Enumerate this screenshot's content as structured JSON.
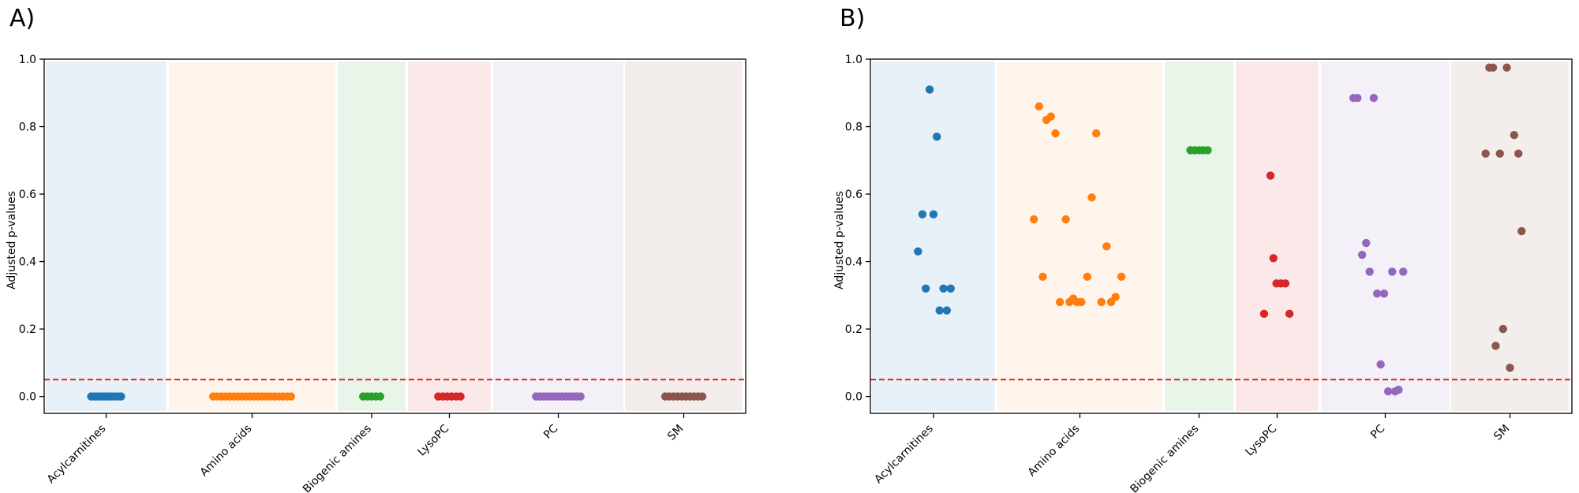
{
  "chart_data": [
    {
      "type": "scatter",
      "panel_label": "A)",
      "ylabel": "Adjusted p-values",
      "xlabel": "",
      "ylim": [
        -0.05,
        1.0
      ],
      "yticks": [
        "0.0",
        "0.2",
        "0.4",
        "0.6",
        "0.8",
        "1.0"
      ],
      "threshold": 0.05,
      "categories": [
        "Acylcarnitines",
        "Amino acids",
        "Biogenic amines",
        "LysoPC",
        "PC",
        "SM"
      ],
      "series": [
        {
          "name": "Acylcarnitines",
          "color": "#1f77b4",
          "bg": "#e8f0f8",
          "points": [
            [
              -0.275,
              0
            ],
            [
              -0.214,
              0
            ],
            [
              -0.153,
              0
            ],
            [
              -0.092,
              0
            ],
            [
              -0.031,
              0
            ],
            [
              0.031,
              0
            ],
            [
              0.092,
              0
            ],
            [
              0.153,
              0
            ],
            [
              0.214,
              0
            ],
            [
              0.275,
              0
            ]
          ]
        },
        {
          "name": "Amino acids",
          "color": "#ff7f0e",
          "bg": "#fff5ec",
          "points": [
            [
              -0.52,
              0
            ],
            [
              -0.465,
              0
            ],
            [
              -0.41,
              0
            ],
            [
              -0.355,
              0
            ],
            [
              -0.3,
              0
            ],
            [
              -0.245,
              0
            ],
            [
              -0.19,
              0
            ],
            [
              -0.135,
              0
            ],
            [
              -0.08,
              0
            ],
            [
              -0.025,
              0
            ],
            [
              0.025,
              0
            ],
            [
              0.08,
              0
            ],
            [
              0.135,
              0
            ],
            [
              0.19,
              0
            ],
            [
              0.245,
              0
            ],
            [
              0.3,
              0
            ],
            [
              0.355,
              0
            ],
            [
              0.41,
              0
            ],
            [
              0.465,
              0
            ],
            [
              0.52,
              0
            ]
          ]
        },
        {
          "name": "Biogenic amines",
          "color": "#2ca02c",
          "bg": "#eaf5ea",
          "points": [
            [
              -0.28,
              0
            ],
            [
              -0.14,
              0
            ],
            [
              0,
              0
            ],
            [
              0.14,
              0
            ],
            [
              0.28,
              0
            ]
          ]
        },
        {
          "name": "LysoPC",
          "color": "#d62728",
          "bg": "#fbe9e9",
          "points": [
            [
              -0.3,
              0
            ],
            [
              -0.18,
              0
            ],
            [
              -0.06,
              0
            ],
            [
              0.06,
              0
            ],
            [
              0.18,
              0
            ],
            [
              0.3,
              0
            ]
          ]
        },
        {
          "name": "PC",
          "color": "#9467bd",
          "bg": "#f4f0f8",
          "points": [
            [
              -0.38,
              0
            ],
            [
              -0.317,
              0
            ],
            [
              -0.253,
              0
            ],
            [
              -0.19,
              0
            ],
            [
              -0.127,
              0
            ],
            [
              -0.063,
              0
            ],
            [
              0,
              0
            ],
            [
              0.063,
              0
            ],
            [
              0.127,
              0
            ],
            [
              0.19,
              0
            ],
            [
              0.253,
              0
            ],
            [
              0.317,
              0
            ],
            [
              0.38,
              0
            ]
          ]
        },
        {
          "name": "SM",
          "color": "#8c564b",
          "bg": "#f3eeec",
          "points": [
            [
              -0.35,
              0
            ],
            [
              -0.272,
              0
            ],
            [
              -0.194,
              0
            ],
            [
              -0.117,
              0
            ],
            [
              -0.039,
              0
            ],
            [
              0.039,
              0
            ],
            [
              0.117,
              0
            ],
            [
              0.194,
              0
            ],
            [
              0.272,
              0
            ],
            [
              0.35,
              0
            ]
          ]
        }
      ]
    },
    {
      "type": "scatter",
      "panel_label": "B)",
      "ylabel": "Adjusted p-values",
      "xlabel": "",
      "ylim": [
        -0.05,
        1.0
      ],
      "yticks": [
        "0.0",
        "0.2",
        "0.4",
        "0.6",
        "0.8",
        "1.0"
      ],
      "threshold": 0.05,
      "categories": [
        "Acylcarnitines",
        "Amino acids",
        "Biogenic amines",
        "LysoPC",
        "PC",
        "SM"
      ],
      "series": [
        {
          "name": "Acylcarnitines",
          "color": "#1f77b4",
          "bg": "#e8f0f8",
          "points": [
            [
              -0.28,
              0.43
            ],
            [
              -0.2,
              0.54
            ],
            [
              -0.14,
              0.32
            ],
            [
              -0.07,
              0.91
            ],
            [
              0,
              0.54
            ],
            [
              0.06,
              0.77
            ],
            [
              0.11,
              0.255
            ],
            [
              0.18,
              0.32
            ],
            [
              0.24,
              0.255
            ],
            [
              0.31,
              0.32
            ]
          ]
        },
        {
          "name": "Amino acids",
          "color": "#ff7f0e",
          "bg": "#fff5ec",
          "points": [
            [
              -0.62,
              0.525
            ],
            [
              -0.55,
              0.86
            ],
            [
              -0.5,
              0.355
            ],
            [
              -0.45,
              0.82
            ],
            [
              -0.39,
              0.83
            ],
            [
              -0.33,
              0.78
            ],
            [
              -0.27,
              0.28
            ],
            [
              -0.19,
              0.525
            ],
            [
              -0.14,
              0.28
            ],
            [
              -0.09,
              0.29
            ],
            [
              -0.04,
              0.28
            ],
            [
              0.02,
              0.28
            ],
            [
              0.1,
              0.355
            ],
            [
              0.16,
              0.59
            ],
            [
              0.22,
              0.78
            ],
            [
              0.29,
              0.28
            ],
            [
              0.36,
              0.445
            ],
            [
              0.42,
              0.28
            ],
            [
              0.48,
              0.295
            ],
            [
              0.56,
              0.355
            ]
          ]
        },
        {
          "name": "Biogenic amines",
          "color": "#2ca02c",
          "bg": "#eaf5ea",
          "points": [
            [
              -0.28,
              0.73
            ],
            [
              -0.14,
              0.73
            ],
            [
              0,
              0.73
            ],
            [
              0.14,
              0.73
            ],
            [
              0.28,
              0.73
            ]
          ]
        },
        {
          "name": "LysoPC",
          "color": "#d62728",
          "bg": "#fbe9e9",
          "points": [
            [
              -0.35,
              0.245
            ],
            [
              -0.18,
              0.655
            ],
            [
              -0.1,
              0.41
            ],
            [
              -0.02,
              0.335
            ],
            [
              0.1,
              0.335
            ],
            [
              0.22,
              0.335
            ],
            [
              0.33,
              0.245
            ]
          ]
        },
        {
          "name": "PC",
          "color": "#9467bd",
          "bg": "#f4f0f8",
          "points": [
            [
              -0.55,
              0.885
            ],
            [
              -0.48,
              0.885
            ],
            [
              -0.4,
              0.42
            ],
            [
              -0.33,
              0.455
            ],
            [
              -0.27,
              0.37
            ],
            [
              -0.2,
              0.885
            ],
            [
              -0.14,
              0.305
            ],
            [
              -0.08,
              0.095
            ],
            [
              -0.02,
              0.305
            ],
            [
              0.05,
              0.015
            ],
            [
              0.12,
              0.37
            ],
            [
              0.17,
              0.015
            ],
            [
              0.23,
              0.02
            ],
            [
              0.31,
              0.37
            ]
          ]
        },
        {
          "name": "SM",
          "color": "#8c564b",
          "bg": "#f3eeec",
          "points": [
            [
              -0.46,
              0.72
            ],
            [
              -0.39,
              0.975
            ],
            [
              -0.32,
              0.975
            ],
            [
              -0.27,
              0.15
            ],
            [
              -0.19,
              0.72
            ],
            [
              -0.13,
              0.2
            ],
            [
              -0.06,
              0.975
            ],
            [
              0,
              0.085
            ],
            [
              0.08,
              0.775
            ],
            [
              0.16,
              0.72
            ],
            [
              0.22,
              0.49
            ]
          ]
        }
      ]
    }
  ]
}
